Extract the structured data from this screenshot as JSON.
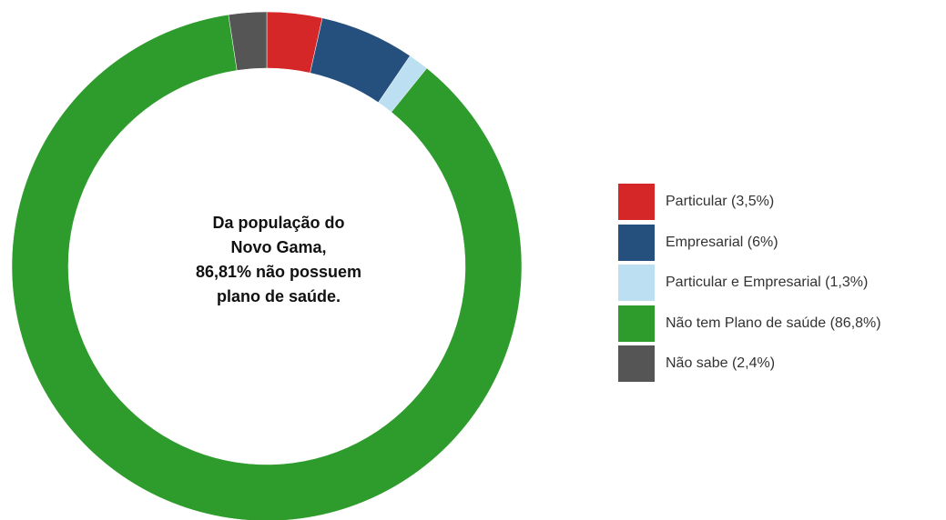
{
  "chart_data": {
    "type": "pie",
    "donut": true,
    "title": "",
    "center_text": [
      "Da população do",
      "Novo Gama,",
      "86,81% não possuem",
      "plano de saúde."
    ],
    "start_angle_deg": 0,
    "slices": [
      {
        "label": "Particular (3,5%)",
        "value": 3.5,
        "color": "#d62728"
      },
      {
        "label": "Empresarial (6%)",
        "value": 6.0,
        "color": "#25507e"
      },
      {
        "label": "Particular e Empresarial (1,3%)",
        "value": 1.3,
        "color": "#bcdff1"
      },
      {
        "label": "Não tem Plano de saúde (86,8%)",
        "value": 86.8,
        "color": "#2e9c2c"
      },
      {
        "label": "Não sabe (2,4%)",
        "value": 2.4,
        "color": "#555555"
      }
    ],
    "legend_position": "right"
  }
}
